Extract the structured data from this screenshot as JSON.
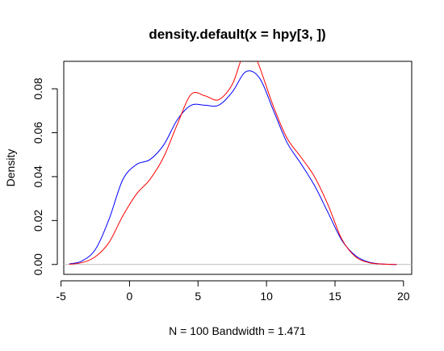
{
  "chart_data": {
    "type": "line",
    "title": "density.default(x = hpy[3, ])",
    "xlabel": "N = 100   Bandwidth = 1.471",
    "ylabel": "Density",
    "xlim": [
      -4.8,
      20.6
    ],
    "ylim": [
      -0.0045,
      0.0925
    ],
    "xticks": [
      -5,
      0,
      5,
      10,
      15,
      20
    ],
    "xtick_labels": [
      "-5",
      "0",
      "5",
      "10",
      "15",
      "20"
    ],
    "yticks": [
      0.0,
      0.02,
      0.04,
      0.06,
      0.08
    ],
    "ytick_labels": [
      "0.00",
      "0.02",
      "0.04",
      "0.06",
      "0.08"
    ],
    "baseline": 0,
    "series": [
      {
        "color": "#0000ff",
        "x": [
          -4.4,
          -3.5,
          -2.5,
          -1.5,
          -0.5,
          0.5,
          1.5,
          2.5,
          3.5,
          4.5,
          5.5,
          6.5,
          7.5,
          8.5,
          9.5,
          10.5,
          11.5,
          12.5,
          13.5,
          14.5,
          15.5,
          16.5,
          17.5,
          18.5,
          19.5
        ],
        "y": [
          0.0003,
          0.0015,
          0.0068,
          0.0205,
          0.0385,
          0.0455,
          0.0478,
          0.0545,
          0.066,
          0.0725,
          0.0725,
          0.0725,
          0.0785,
          0.0878,
          0.0848,
          0.0702,
          0.0555,
          0.046,
          0.036,
          0.0235,
          0.011,
          0.004,
          0.001,
          0.0002,
          0.0
        ]
      },
      {
        "color": "#ff0000",
        "x": [
          -4.4,
          -3.5,
          -2.5,
          -1.5,
          -0.5,
          0.5,
          1.5,
          2.5,
          3.5,
          4.5,
          5.5,
          6.5,
          7.5,
          8.2,
          8.7,
          9.3,
          10.5,
          11.5,
          12.5,
          13.5,
          14.5,
          15.5,
          16.5,
          17.5,
          18.5,
          19.5
        ],
        "y": [
          0.0001,
          0.0008,
          0.0035,
          0.01,
          0.022,
          0.032,
          0.0388,
          0.049,
          0.064,
          0.0775,
          0.0768,
          0.075,
          0.082,
          0.094,
          0.097,
          0.093,
          0.072,
          0.0575,
          0.049,
          0.04,
          0.027,
          0.0115,
          0.0035,
          0.0008,
          0.0002,
          0.0
        ]
      }
    ],
    "grid": false,
    "legend": "none",
    "colors": {
      "axis": "#000000",
      "baseline": "#bebebe"
    }
  }
}
